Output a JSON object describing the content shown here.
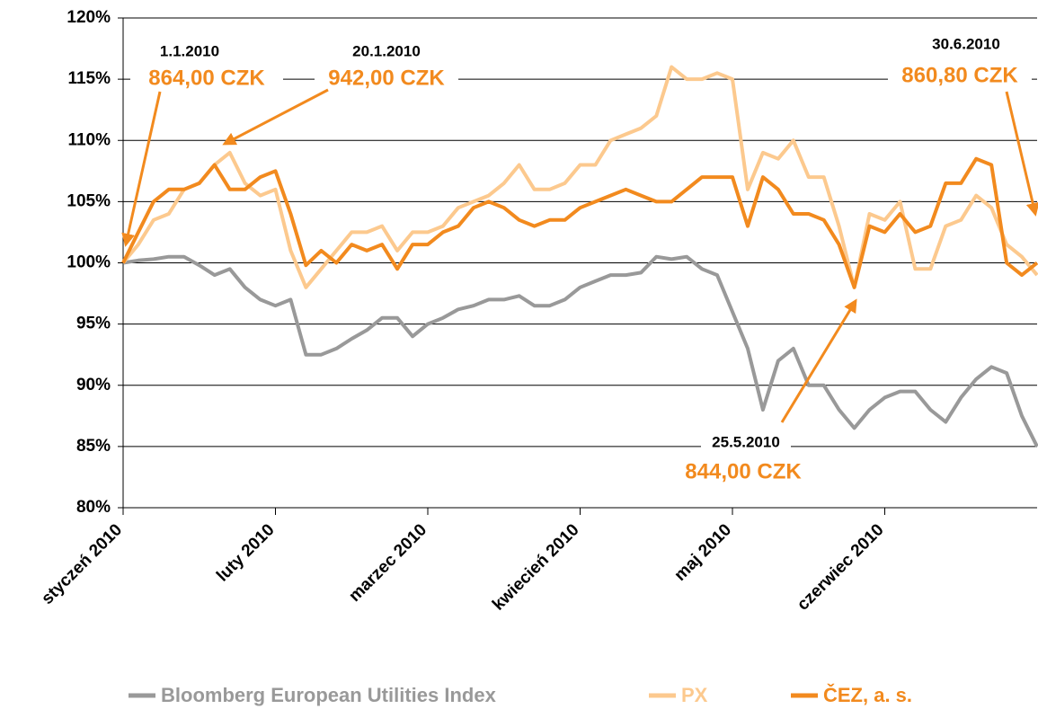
{
  "chart_data": {
    "type": "line",
    "categories": [
      "styczeń 2010",
      null,
      null,
      null,
      null,
      null,
      null,
      null,
      null,
      null,
      "luty 2010",
      null,
      null,
      null,
      null,
      null,
      null,
      null,
      null,
      null,
      "marzec 2010",
      null,
      null,
      null,
      null,
      null,
      null,
      null,
      null,
      null,
      "kwiecień 2010",
      null,
      null,
      null,
      null,
      null,
      null,
      null,
      null,
      null,
      "maj 2010",
      null,
      null,
      null,
      null,
      null,
      null,
      null,
      null,
      null,
      "czerwiec 2010",
      null,
      null,
      null,
      null,
      null,
      null,
      null,
      null,
      null,
      null
    ],
    "series": [
      {
        "name": "Bloomberg European Utilities Index",
        "color": "#999999",
        "values": [
          100,
          100.2,
          100.3,
          100.5,
          100.5,
          99.8,
          99,
          99.5,
          98,
          97,
          96.5,
          97,
          92.5,
          92.5,
          93,
          93.8,
          94.5,
          95.5,
          95.5,
          94,
          95,
          95.5,
          96.2,
          96.5,
          97,
          97,
          97.3,
          96.5,
          96.5,
          97,
          98,
          98.5,
          99,
          99,
          99.2,
          100.5,
          100.3,
          100.5,
          99.5,
          99,
          96,
          93,
          88,
          92,
          93,
          90,
          90,
          88,
          86.5,
          88,
          89,
          89.5,
          89.5,
          88,
          87,
          89,
          90.5,
          91.5,
          91,
          87.5,
          85
        ]
      },
      {
        "name": "PX",
        "color": "#fcc98e",
        "values": [
          100,
          101.5,
          103.5,
          104,
          106,
          106.5,
          108,
          109,
          106.5,
          105.5,
          106,
          101,
          98,
          99.5,
          101,
          102.5,
          102.5,
          103,
          101,
          102.5,
          102.5,
          103,
          104.5,
          105,
          105.5,
          106.5,
          108,
          106,
          106,
          106.5,
          108,
          108,
          110,
          110.5,
          111,
          112,
          116,
          115,
          115,
          115.5,
          115,
          106,
          109,
          108.5,
          110,
          107,
          107,
          103,
          98,
          104,
          103.5,
          105,
          99.5,
          99.5,
          103,
          103.5,
          105.5,
          104.5,
          101.5,
          100.5,
          99
        ]
      },
      {
        "name": "ČEZ, a. s.",
        "color": "#f28a1e",
        "values": [
          100,
          102.5,
          105,
          106,
          106,
          106.5,
          108,
          106,
          106,
          107,
          107.5,
          104,
          99.8,
          101,
          100,
          101.5,
          101,
          101.5,
          99.5,
          101.5,
          101.5,
          102.5,
          103,
          104.5,
          105,
          104.5,
          103.5,
          103,
          103.5,
          103.5,
          104.5,
          105,
          105.5,
          106,
          105.5,
          105,
          105,
          106,
          107,
          107,
          107,
          103,
          107,
          106,
          104,
          104,
          103.5,
          101.5,
          98,
          103,
          102.5,
          104,
          102.5,
          103,
          106.5,
          106.5,
          108.5,
          108,
          100,
          99,
          100
        ]
      }
    ],
    "ylim": [
      80,
      120
    ],
    "yticks": [
      {
        "value": 80,
        "label": "80%"
      },
      {
        "value": 85,
        "label": "85%"
      },
      {
        "value": 90,
        "label": "90%"
      },
      {
        "value": 95,
        "label": "95%"
      },
      {
        "value": 100,
        "label": "100%"
      },
      {
        "value": 105,
        "label": "105%"
      },
      {
        "value": 110,
        "label": "110%"
      },
      {
        "value": 115,
        "label": "115%"
      },
      {
        "value": 120,
        "label": "120%"
      }
    ],
    "grid": true,
    "annotations": [
      {
        "date": "1.1.2010",
        "price": "864,00 CZK"
      },
      {
        "date": "20.1.2010",
        "price": "942,00 CZK"
      },
      {
        "date": "30.6.2010",
        "price": "860,80 CZK"
      },
      {
        "date": "25.5.2010",
        "price": "844,00 CZK"
      }
    ]
  }
}
